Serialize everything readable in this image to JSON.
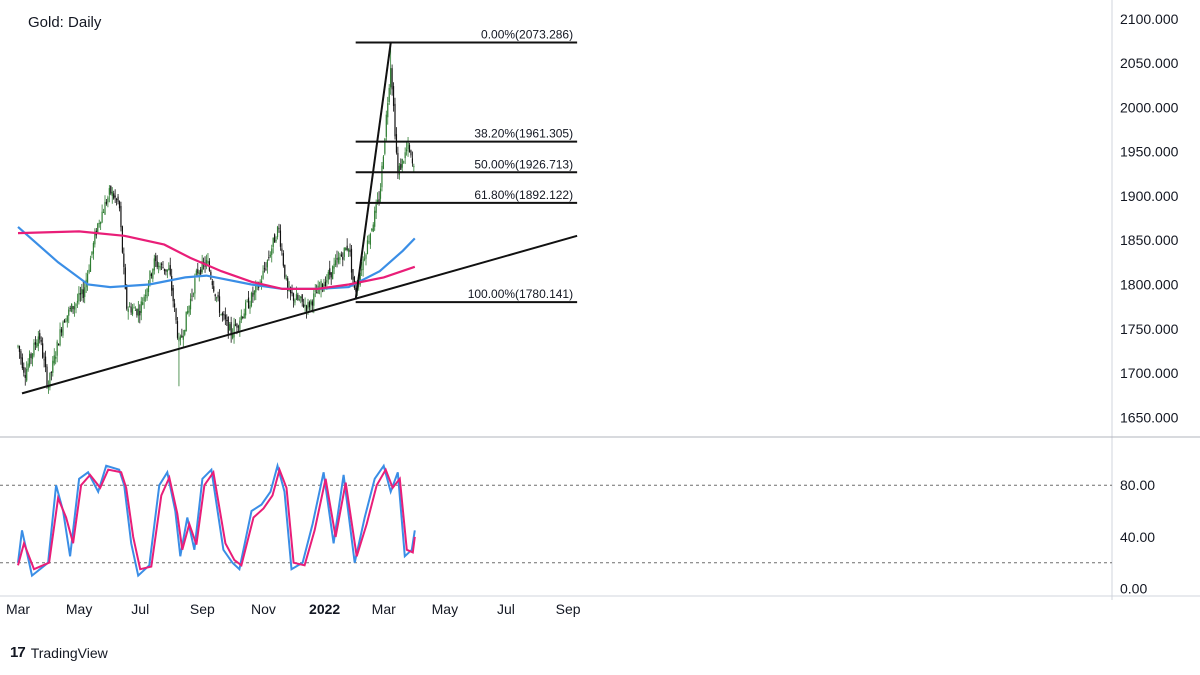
{
  "header": {
    "title": "Gold: Daily"
  },
  "brand": {
    "logo": "17",
    "name": "TradingView"
  },
  "colors": {
    "candle_up": "#2e7d32",
    "candle_down": "#111111",
    "ma_fast": "#3a8ee6",
    "ma_slow": "#e91e78",
    "stoch_k": "#3a8ee6",
    "stoch_d": "#e91e78",
    "trend": "#111111",
    "fib": "#111111",
    "axis_text": "#131722"
  },
  "chart_data": [
    {
      "type": "candlestick",
      "title": "Gold: Daily",
      "ylim": [
        1630,
        2110
      ],
      "x_tick_labels": [
        "Mar",
        "May",
        "Jul",
        "Sep",
        "Nov",
        "2022",
        "Mar",
        "May",
        "Jul",
        "Sep"
      ],
      "y_tick_labels": [
        "1650.000",
        "1700.000",
        "1750.000",
        "1800.000",
        "1850.000",
        "1900.000",
        "1950.000",
        "2000.000",
        "2050.000",
        "2100.000"
      ],
      "price_path": [
        [
          "2021-03-01",
          1730
        ],
        [
          "2021-03-08",
          1700
        ],
        [
          "2021-03-22",
          1745
        ],
        [
          "2021-03-31",
          1685
        ],
        [
          "2021-04-15",
          1760
        ],
        [
          "2021-05-05",
          1790
        ],
        [
          "2021-05-20",
          1870
        ],
        [
          "2021-06-01",
          1905
        ],
        [
          "2021-06-10",
          1890
        ],
        [
          "2021-06-17",
          1775
        ],
        [
          "2021-06-30",
          1770
        ],
        [
          "2021-07-15",
          1825
        ],
        [
          "2021-07-30",
          1815
        ],
        [
          "2021-08-09",
          1730
        ],
        [
          "2021-08-27",
          1815
        ],
        [
          "2021-09-06",
          1825
        ],
        [
          "2021-09-20",
          1765
        ],
        [
          "2021-09-30",
          1745
        ],
        [
          "2021-10-15",
          1775
        ],
        [
          "2021-10-28",
          1800
        ],
        [
          "2021-11-16",
          1865
        ],
        [
          "2021-11-25",
          1790
        ],
        [
          "2021-12-15",
          1775
        ],
        [
          "2022-01-05",
          1810
        ],
        [
          "2022-01-25",
          1845
        ],
        [
          "2022-01-31",
          1790
        ],
        [
          "2022-02-10",
          1835
        ],
        [
          "2022-02-25",
          1900
        ],
        [
          "2022-03-08",
          2050
        ],
        [
          "2022-03-15",
          1925
        ],
        [
          "2022-03-25",
          1955
        ],
        [
          "2022-04-01",
          1925
        ]
      ],
      "wick_extremes": [
        [
          "2021-08-09",
          1685
        ],
        [
          "2021-03-31",
          1678
        ],
        [
          "2022-03-08",
          2070
        ]
      ],
      "moving_averages": [
        {
          "key": "ma_fast",
          "points": [
            [
              "2021-03-01",
              1865
            ],
            [
              "2021-04-10",
              1825
            ],
            [
              "2021-05-10",
              1800
            ],
            [
              "2021-06-01",
              1797
            ],
            [
              "2021-07-10",
              1800
            ],
            [
              "2021-08-15",
              1808
            ],
            [
              "2021-09-05",
              1810
            ],
            [
              "2021-10-20",
              1800
            ],
            [
              "2021-11-20",
              1795
            ],
            [
              "2021-12-25",
              1795
            ],
            [
              "2022-01-25",
              1797
            ],
            [
              "2022-02-25",
              1815
            ],
            [
              "2022-03-20",
              1838
            ],
            [
              "2022-04-01",
              1852
            ]
          ]
        },
        {
          "key": "ma_slow",
          "points": [
            [
              "2021-03-01",
              1858
            ],
            [
              "2021-05-01",
              1860
            ],
            [
              "2021-06-15",
              1855
            ],
            [
              "2021-07-25",
              1845
            ],
            [
              "2021-08-20",
              1830
            ],
            [
              "2021-09-20",
              1815
            ],
            [
              "2021-10-20",
              1803
            ],
            [
              "2021-11-20",
              1795
            ],
            [
              "2021-12-25",
              1795
            ],
            [
              "2022-01-25",
              1800
            ],
            [
              "2022-03-01",
              1808
            ],
            [
              "2022-04-01",
              1820
            ]
          ]
        }
      ],
      "trendlines": [
        {
          "from": [
            "2021-03-05",
            1677
          ],
          "to": [
            "2022-09-10",
            1855
          ]
        },
        {
          "from": [
            "2022-02-01",
            1783
          ],
          "to": [
            "2022-03-08",
            2073
          ]
        }
      ],
      "fibonacci": {
        "start_date": "2022-02-01",
        "end_date": "2022-09-10",
        "levels": [
          {
            "label": "0.00%(2073.286)",
            "value": 2073.286
          },
          {
            "label": "38.20%(1961.305)",
            "value": 1961.305
          },
          {
            "label": "50.00%(1926.713)",
            "value": 1926.713
          },
          {
            "label": "61.80%(1892.122)",
            "value": 1892.122
          },
          {
            "label": "100.00%(1780.141)",
            "value": 1780.141
          }
        ]
      }
    },
    {
      "type": "line",
      "ylim": [
        -5,
        115
      ],
      "y_tick_labels": [
        "0.00",
        "40.00",
        "80.00"
      ],
      "reference_levels": [
        20,
        80
      ],
      "series": [
        {
          "key": "stoch_k",
          "points": [
            [
              "2021-03-01",
              20
            ],
            [
              "2021-03-05",
              45
            ],
            [
              "2021-03-15",
              10
            ],
            [
              "2021-03-31",
              20
            ],
            [
              "2021-04-08",
              80
            ],
            [
              "2021-04-15",
              60
            ],
            [
              "2021-04-22",
              25
            ],
            [
              "2021-05-01",
              85
            ],
            [
              "2021-05-10",
              90
            ],
            [
              "2021-05-20",
              75
            ],
            [
              "2021-05-28",
              95
            ],
            [
              "2021-06-10",
              92
            ],
            [
              "2021-06-15",
              80
            ],
            [
              "2021-06-22",
              35
            ],
            [
              "2021-06-29",
              10
            ],
            [
              "2021-07-10",
              18
            ],
            [
              "2021-07-20",
              80
            ],
            [
              "2021-07-28",
              90
            ],
            [
              "2021-08-05",
              60
            ],
            [
              "2021-08-10",
              25
            ],
            [
              "2021-08-17",
              55
            ],
            [
              "2021-08-24",
              30
            ],
            [
              "2021-09-01",
              85
            ],
            [
              "2021-09-10",
              92
            ],
            [
              "2021-09-22",
              30
            ],
            [
              "2021-10-01",
              20
            ],
            [
              "2021-10-08",
              15
            ],
            [
              "2021-10-20",
              60
            ],
            [
              "2021-10-30",
              65
            ],
            [
              "2021-11-08",
              75
            ],
            [
              "2021-11-15",
              95
            ],
            [
              "2021-11-22",
              75
            ],
            [
              "2021-11-29",
              15
            ],
            [
              "2021-12-10",
              20
            ],
            [
              "2021-12-20",
              50
            ],
            [
              "2021-12-31",
              90
            ],
            [
              "2022-01-10",
              35
            ],
            [
              "2022-01-20",
              88
            ],
            [
              "2022-01-31",
              20
            ],
            [
              "2022-02-10",
              55
            ],
            [
              "2022-02-20",
              85
            ],
            [
              "2022-03-01",
              95
            ],
            [
              "2022-03-08",
              75
            ],
            [
              "2022-03-15",
              90
            ],
            [
              "2022-03-22",
              25
            ],
            [
              "2022-03-29",
              30
            ],
            [
              "2022-04-01",
              45
            ]
          ]
        },
        {
          "key": "stoch_d",
          "points": [
            [
              "2021-03-01",
              18
            ],
            [
              "2021-03-07",
              35
            ],
            [
              "2021-03-17",
              15
            ],
            [
              "2021-04-01",
              20
            ],
            [
              "2021-04-10",
              70
            ],
            [
              "2021-04-18",
              55
            ],
            [
              "2021-04-25",
              35
            ],
            [
              "2021-05-03",
              80
            ],
            [
              "2021-05-12",
              88
            ],
            [
              "2021-05-22",
              78
            ],
            [
              "2021-05-30",
              92
            ],
            [
              "2021-06-12",
              90
            ],
            [
              "2021-06-17",
              78
            ],
            [
              "2021-06-24",
              40
            ],
            [
              "2021-07-01",
              15
            ],
            [
              "2021-07-12",
              17
            ],
            [
              "2021-07-22",
              72
            ],
            [
              "2021-07-30",
              86
            ],
            [
              "2021-08-07",
              58
            ],
            [
              "2021-08-12",
              30
            ],
            [
              "2021-08-19",
              50
            ],
            [
              "2021-08-26",
              34
            ],
            [
              "2021-09-03",
              80
            ],
            [
              "2021-09-12",
              90
            ],
            [
              "2021-09-24",
              35
            ],
            [
              "2021-10-03",
              22
            ],
            [
              "2021-10-10",
              18
            ],
            [
              "2021-10-22",
              55
            ],
            [
              "2021-11-01",
              62
            ],
            [
              "2021-11-10",
              72
            ],
            [
              "2021-11-17",
              92
            ],
            [
              "2021-11-24",
              78
            ],
            [
              "2021-12-01",
              20
            ],
            [
              "2021-12-12",
              18
            ],
            [
              "2021-12-22",
              45
            ],
            [
              "2022-01-02",
              85
            ],
            [
              "2022-01-12",
              40
            ],
            [
              "2022-01-22",
              82
            ],
            [
              "2022-02-02",
              25
            ],
            [
              "2022-02-12",
              50
            ],
            [
              "2022-02-22",
              80
            ],
            [
              "2022-03-03",
              92
            ],
            [
              "2022-03-10",
              78
            ],
            [
              "2022-03-17",
              85
            ],
            [
              "2022-03-24",
              30
            ],
            [
              "2022-03-30",
              28
            ],
            [
              "2022-04-01",
              40
            ]
          ]
        }
      ]
    }
  ]
}
